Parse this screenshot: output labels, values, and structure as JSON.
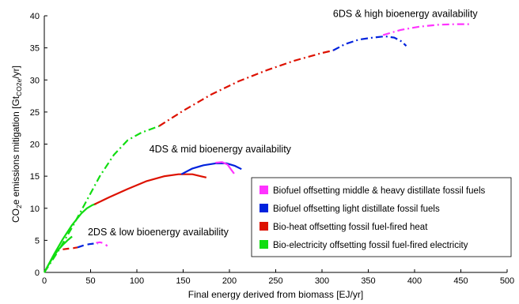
{
  "chart_data": {
    "type": "line",
    "xlabel": "Final energy derived from biomass [EJ/yr]",
    "ylabel": {
      "prefix": "CO",
      "sub": "2",
      "mid": "e emissions mitigation [Gt",
      "sub2": "CO2e",
      "suffix": "/yr]"
    },
    "xlim": [
      0,
      500
    ],
    "ylim": [
      0,
      40
    ],
    "xticks": [
      "0",
      "50",
      "100",
      "150",
      "200",
      "250",
      "300",
      "350",
      "400",
      "450",
      "500"
    ],
    "yticks": [
      "0",
      "5",
      "10",
      "15",
      "20",
      "25",
      "30",
      "35",
      "40"
    ],
    "grid": false,
    "legend_position": "bottom-right",
    "annotations": [
      {
        "text": "6DS & high bioenergy availability",
        "x": 390,
        "y": 39.8
      },
      {
        "text": "4DS & mid bioenergy availability",
        "x": 190,
        "y": 18.7
      },
      {
        "text": "2DS & low bioenergy availability",
        "x": 123,
        "y": 5.8
      }
    ],
    "legend": [
      {
        "label": "Biofuel offsetting middle & heavy distillate fossil fuels",
        "color": "#ff33ff"
      },
      {
        "label": "Biofuel offsetting light distillate fossil fuels",
        "color": "#0022dd"
      },
      {
        "label": "Bio-heat offsetting fossil fuel-fired heat",
        "color": "#dd1100"
      },
      {
        "label": "Bio-electricity offsetting fossil fuel-fired electricity",
        "color": "#11dd11"
      }
    ],
    "series": [
      {
        "scenario": "2DS",
        "category": "Bio-electricity offsetting fossil fuel-fired electricity",
        "color": "#11dd11",
        "dash": "solid",
        "x": [
          0,
          5,
          10,
          15,
          20,
          25,
          30
        ],
        "y": [
          0,
          1.3,
          2.5,
          3.5,
          4.3,
          5.0,
          5.6
        ]
      },
      {
        "scenario": "2DS",
        "category": "Bio-heat offsetting fossil fuel-fired heat",
        "color": "#dd1100",
        "dash": "dashed",
        "x": [
          20,
          26,
          32,
          36
        ],
        "y": [
          3.6,
          3.7,
          3.8,
          3.9
        ]
      },
      {
        "scenario": "2DS",
        "category": "Biofuel offsetting light distillate fossil fuels",
        "color": "#0022dd",
        "dash": "dashed",
        "x": [
          36,
          42,
          48,
          54,
          58
        ],
        "y": [
          3.9,
          4.2,
          4.4,
          4.5,
          4.5
        ]
      },
      {
        "scenario": "2DS",
        "category": "Biofuel offsetting middle & heavy distillate fossil fuels",
        "color": "#ff33ff",
        "dash": "dashed",
        "x": [
          56,
          60,
          63,
          66,
          68
        ],
        "y": [
          4.6,
          4.7,
          4.6,
          4.4,
          4.1
        ]
      },
      {
        "scenario": "4DS",
        "category": "Bio-electricity offsetting fossil fuel-fired electricity",
        "color": "#11dd11",
        "dash": "solid",
        "x": [
          0,
          10,
          20,
          30,
          40,
          46,
          52,
          56
        ],
        "y": [
          0,
          2.7,
          5.2,
          7.4,
          9.2,
          10.0,
          10.5,
          10.7
        ]
      },
      {
        "scenario": "4DS",
        "category": "Bio-heat offsetting fossil fuel-fired heat",
        "color": "#dd1100",
        "dash": "solid",
        "x": [
          54,
          70,
          90,
          110,
          130,
          145,
          160,
          175
        ],
        "y": [
          10.6,
          11.7,
          13.0,
          14.2,
          15.0,
          15.3,
          15.3,
          14.8
        ]
      },
      {
        "scenario": "4DS",
        "category": "Biofuel offsetting light distillate fossil fuels",
        "color": "#0022dd",
        "dash": "solid",
        "x": [
          148,
          160,
          172,
          185,
          197,
          206,
          213
        ],
        "y": [
          15.3,
          16.2,
          16.7,
          17.0,
          17.0,
          16.6,
          16.1
        ]
      },
      {
        "scenario": "4DS",
        "category": "Biofuel offsetting middle & heavy distillate fossil fuels",
        "color": "#ff33ff",
        "dash": "solid",
        "x": [
          185,
          192,
          198,
          202,
          205
        ],
        "y": [
          17.1,
          17.2,
          16.8,
          16.0,
          15.4
        ]
      },
      {
        "scenario": "6DS",
        "category": "Bio-electricity offsetting fossil fuel-fired electricity",
        "color": "#11dd11",
        "dash": "dashdot",
        "x": [
          0,
          15,
          30,
          45,
          60,
          75,
          90,
          105,
          124
        ],
        "y": [
          0,
          3.3,
          7.0,
          11.0,
          15.0,
          18.3,
          20.6,
          21.8,
          22.8
        ]
      },
      {
        "scenario": "6DS",
        "category": "Bio-heat offsetting fossil fuel-fired heat",
        "color": "#dd1100",
        "dash": "dashdot",
        "x": [
          124,
          150,
          180,
          210,
          240,
          270,
          300,
          312
        ],
        "y": [
          22.8,
          25.2,
          27.7,
          29.8,
          31.5,
          33.0,
          34.2,
          34.6
        ]
      },
      {
        "scenario": "6DS",
        "category": "Biofuel offsetting light distillate fossil fuels",
        "color": "#0022dd",
        "dash": "dashdot",
        "x": [
          312,
          325,
          340,
          355,
          368,
          378,
          386,
          391
        ],
        "y": [
          34.6,
          35.6,
          36.3,
          36.6,
          36.8,
          36.6,
          36.0,
          35.3
        ]
      },
      {
        "scenario": "6DS",
        "category": "Biofuel offsetting middle & heavy distillate fossil fuels",
        "color": "#ff33ff",
        "dash": "dashdot",
        "x": [
          366,
          385,
          405,
          425,
          445,
          460
        ],
        "y": [
          37.0,
          37.8,
          38.3,
          38.6,
          38.7,
          38.7
        ]
      }
    ]
  }
}
